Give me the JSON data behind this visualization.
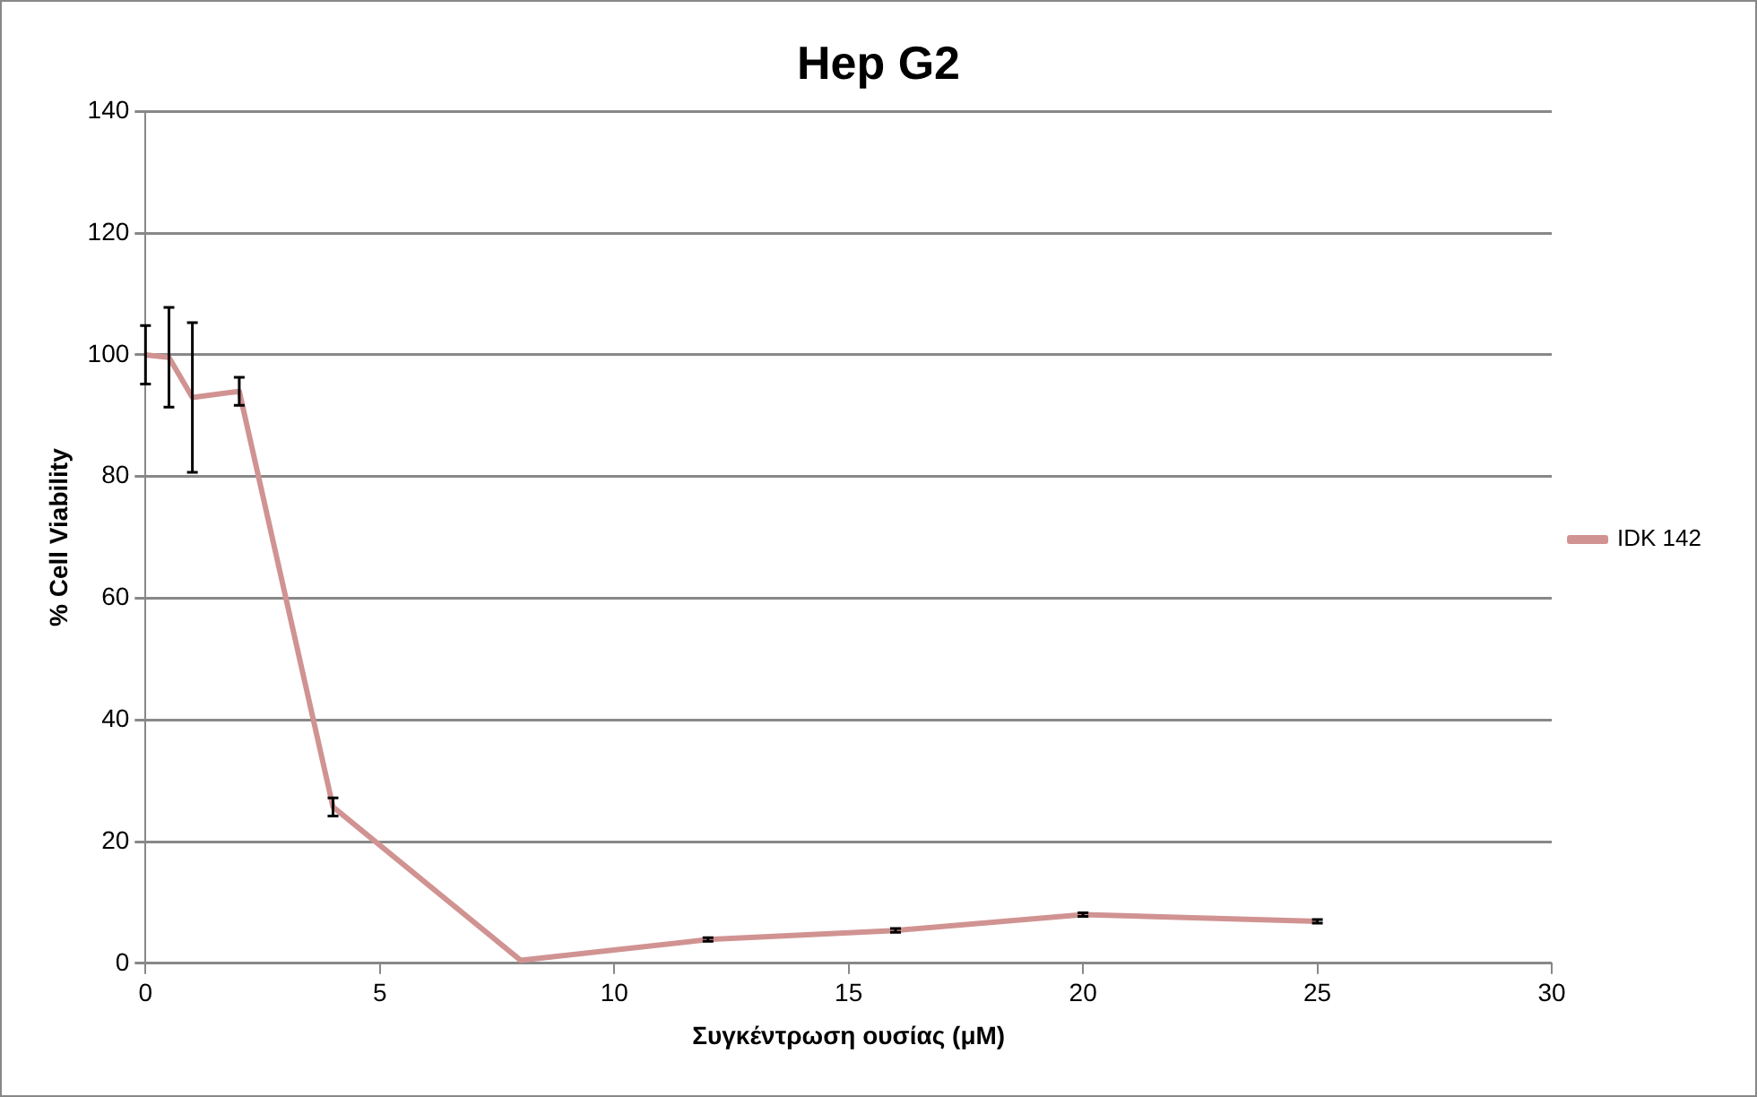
{
  "chart_data": {
    "type": "line",
    "title": "Hep G2",
    "xlabel": "Συγκέντρωση ουσίας (μM)",
    "ylabel": "% Cell Viability",
    "x": [
      0,
      0.5,
      1,
      2,
      4,
      8,
      12,
      16,
      20,
      25
    ],
    "series": [
      {
        "name": "IDK 142",
        "color": "#d09392",
        "values": [
          100,
          99.6,
          93,
          94,
          25.7,
          0.5,
          3.9,
          5.4,
          8,
          6.9
        ],
        "errors": [
          4.8,
          8.2,
          12.3,
          2.3,
          1.5,
          null,
          0.3,
          0.3,
          0.3,
          0.3
        ]
      }
    ],
    "xlim": [
      0,
      30
    ],
    "xticks": [
      0,
      5,
      10,
      15,
      20,
      25,
      30
    ],
    "ylim": [
      0,
      140
    ],
    "yticks": [
      0,
      20,
      40,
      60,
      80,
      100,
      120,
      140
    ],
    "grid": "y",
    "legend": "right",
    "marker": "none",
    "line_style": "solid"
  }
}
